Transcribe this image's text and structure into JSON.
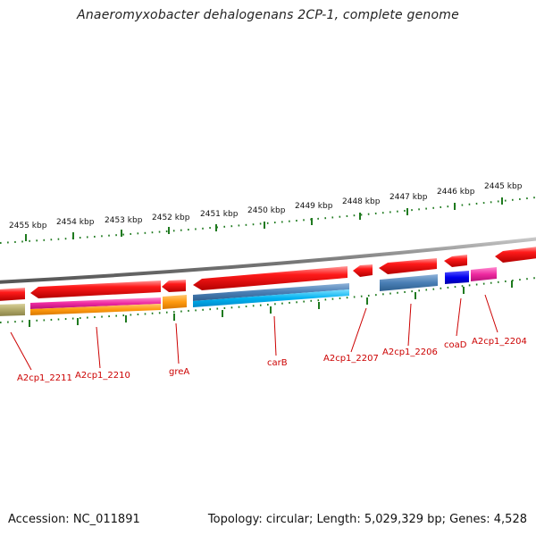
{
  "title": "Anaeromyxobacter dehalogenans 2CP-1, complete genome",
  "footer": {
    "accession": "Accession: NC_011891",
    "summary": "Topology: circular; Length: 5,029,329 bp; Genes: 4,528"
  },
  "colors": {
    "backbone": "#8a8a8a",
    "tick": "#1f7a1f",
    "label": "#cc0000"
  },
  "scale": {
    "unit": "kbp",
    "labels": [
      "2455 kbp",
      "2454 kbp",
      "2453 kbp",
      "2452 kbp",
      "2451 kbp",
      "2450 kbp",
      "2449 kbp",
      "2448 kbp",
      "2447 kbp",
      "2446 kbp",
      "2445 kbp"
    ]
  },
  "gene_labels": [
    "A2cp1_2211",
    "A2cp1_2210",
    "greA",
    "carB",
    "A2cp1_2207",
    "A2cp1_2206",
    "coaD",
    "A2cp1_2204"
  ]
}
